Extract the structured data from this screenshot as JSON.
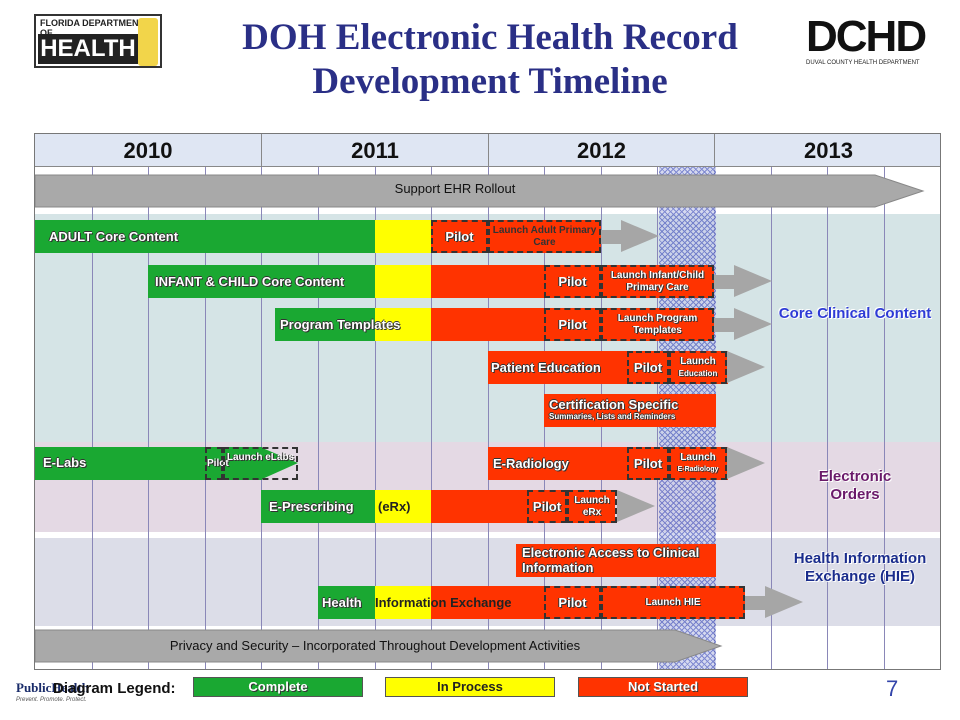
{
  "title_line1": "DOH Electronic Health Record",
  "title_line2": "Development Timeline",
  "logo_left": {
    "top": "FLORIDA DEPARTMENT OF",
    "main": "HEALTH"
  },
  "logo_right": {
    "main": "DCHD",
    "sub": "DUVAL COUNTY HEALTH DEPARTMENT"
  },
  "years": [
    "2010",
    "2011",
    "2012",
    "2013"
  ],
  "rollout": "Support EHR Rollout",
  "privacy": "Privacy and Security – Incorporated Throughout Development Activities",
  "rows": {
    "adult": {
      "label": "ADULT Core Content",
      "pilot": "Pilot",
      "launch": "Launch Adult Primary Care"
    },
    "infant": {
      "label": "INFANT & CHILD Core Content",
      "pilot": "Pilot",
      "launch": "Launch Infant/Child Primary Care"
    },
    "program": {
      "label": "Program Templates",
      "pilot": "Pilot",
      "launch": "Launch Program Templates"
    },
    "patient": {
      "label": "Patient Education",
      "pilot": "Pilot",
      "launch_line1": "Launch",
      "launch_line2": "Education"
    },
    "cert": {
      "label": "Certification Specific",
      "sub": "Summaries, Lists and Reminders"
    },
    "elabs": {
      "label": "E-Labs",
      "pilot": "Pilot",
      "launch": "Launch eLabs"
    },
    "eradiology": {
      "label": "E-Radiology",
      "pilot": "Pilot",
      "launch_line1": "Launch",
      "launch_line2": "E-Radiology"
    },
    "erx": {
      "label": "E-Prescribing",
      "label2": "(eRx)",
      "pilot": "Pilot",
      "launch": "Launch eRx"
    },
    "access": {
      "label": "Electronic Access to Clinical Information"
    },
    "hie": {
      "label1": "Health",
      "label2": "Information Exchange",
      "pilot": "Pilot",
      "launch": "Launch HIE"
    }
  },
  "categories": {
    "core": "Core Clinical Content",
    "orders": "Electronic Orders",
    "hie": "Health Information Exchange (HIE)"
  },
  "legend": {
    "title": "Diagram Legend:",
    "complete": "Complete",
    "in_process": "In Process",
    "not_started": "Not Started"
  },
  "public_health": "PublicHealth",
  "public_health_tag": "Prevent. Promote. Protect.",
  "page_number": "7",
  "colors": {
    "complete": "#1aa832",
    "in_process": "#ffff00",
    "not_started": "#ff3300",
    "title": "#2a2f86",
    "core_band": "#d5e4e6",
    "orders_band": "#e4d9e4",
    "hie_band": "#dcdde8",
    "cat_core": "#2e3bd6",
    "cat_orders": "#6a1a6a",
    "cat_hie": "#1a2c8c"
  }
}
